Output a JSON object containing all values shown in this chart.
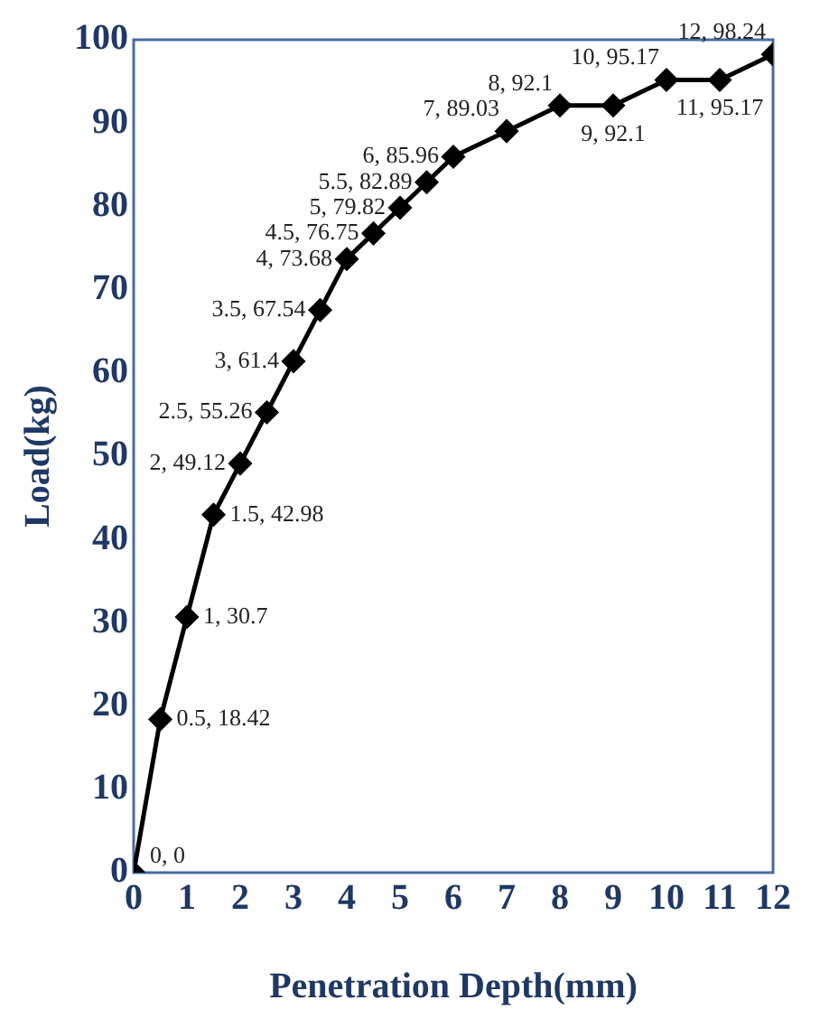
{
  "chart_data": {
    "type": "line",
    "xlabel": "Penetration Depth(mm)",
    "ylabel": "Load(kg)",
    "x": [
      0,
      0.5,
      1,
      1.5,
      2,
      2.5,
      3,
      3.5,
      4,
      4.5,
      5,
      5.5,
      6,
      7,
      8,
      9,
      10,
      11,
      12
    ],
    "series": [
      {
        "color": "#000000",
        "values": [
          0,
          18.42,
          30.7,
          42.98,
          49.12,
          55.26,
          61.4,
          67.54,
          73.68,
          76.75,
          79.82,
          82.89,
          85.96,
          89.03,
          92.1,
          92.1,
          95.17,
          95.17,
          98.24
        ],
        "value_labels": [
          "0, 0",
          "0.5, 18.42",
          "1, 30.7",
          "1.5, 42.98",
          "2, 49.12",
          "2.5, 55.26",
          "3, 61.4",
          "3.5, 67.54",
          "4, 73.68",
          "4.5, 76.75",
          "5, 79.82",
          "5.5, 82.89",
          "6, 85.96",
          "7, 89.03",
          "8, 92.1",
          "9, 92.1",
          "10, 95.17",
          "11, 95.17",
          "12, 98.24"
        ]
      }
    ],
    "xlim": [
      0,
      12
    ],
    "xticks": [
      0,
      1,
      2,
      3,
      4,
      5,
      6,
      7,
      8,
      9,
      10,
      11,
      12
    ],
    "ylim": [
      0,
      100
    ],
    "yticks": [
      0,
      10,
      20,
      30,
      40,
      50,
      60,
      70,
      80,
      90,
      100
    ],
    "grid": false,
    "legend": false,
    "marker": "diamond",
    "line_style": "solid"
  }
}
